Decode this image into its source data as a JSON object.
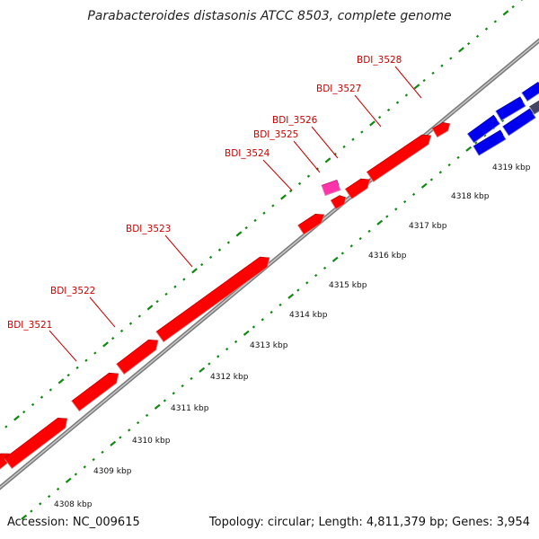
{
  "title": "Parabacteroides distasonis ATCC 8503, complete genome",
  "footer": {
    "accession": "Accession: NC_009615",
    "summary": "Topology: circular; Length: 4,811,379 bp; Genes: 3,954"
  },
  "colors": {
    "gene_forward": "#ff0000",
    "gene_reverse": "#0000ee",
    "gene_highlight": "#ff33aa",
    "backbone": "#999999",
    "ticks": "#118811",
    "label": "#cc0000"
  },
  "genes": [
    {
      "name": "BDI_3521",
      "color": "red"
    },
    {
      "name": "BDI_3522",
      "color": "red"
    },
    {
      "name": "BDI_3523",
      "color": "red"
    },
    {
      "name": "BDI_3524",
      "color": "red"
    },
    {
      "name": "BDI_3525",
      "color": "pink"
    },
    {
      "name": "BDI_3526",
      "color": "red"
    },
    {
      "name": "BDI_3527",
      "color": "red"
    },
    {
      "name": "BDI_3528",
      "color": "red"
    }
  ],
  "kbp_labels": [
    "4308 kbp",
    "4309 kbp",
    "4310 kbp",
    "4311 kbp",
    "4312 kbp",
    "4313 kbp",
    "4314 kbp",
    "4315 kbp",
    "4316 kbp",
    "4317 kbp",
    "4318 kbp",
    "4319 kbp"
  ]
}
